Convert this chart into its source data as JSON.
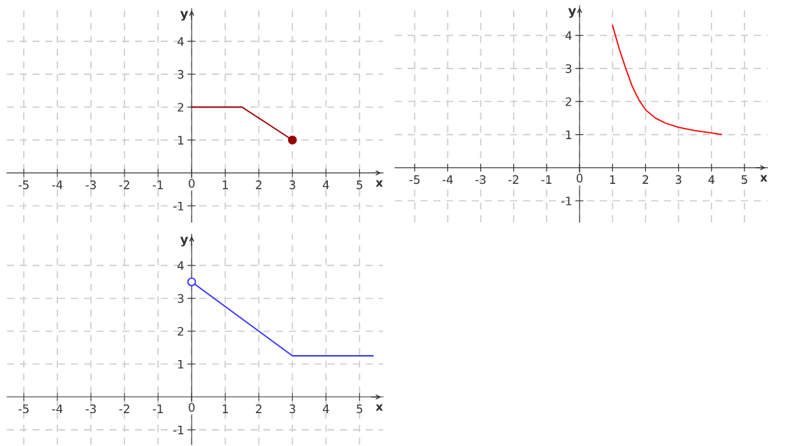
{
  "chart_data": [
    {
      "type": "line",
      "xlabel": "x",
      "ylabel": "y",
      "xlim": [
        -5.5,
        5.7
      ],
      "ylim": [
        -1.5,
        5.0
      ],
      "xticks": [
        -5,
        -4,
        -3,
        -2,
        -1,
        0,
        1,
        2,
        3,
        4,
        5
      ],
      "yticks": [
        -1,
        1,
        2,
        3,
        4
      ],
      "grid": true,
      "line_style": "solid",
      "series": [
        {
          "color": "#990000",
          "x": [
            0,
            1.5,
            3
          ],
          "values": [
            2,
            2,
            1
          ]
        },
        {
          "type": "scatter",
          "color": "#990000",
          "marker": "circle",
          "x": [
            3
          ],
          "values": [
            1
          ]
        }
      ]
    },
    {
      "type": "line",
      "xlabel": "x",
      "ylabel": "y",
      "xlim": [
        -5.6,
        5.7
      ],
      "ylim": [
        -1.65,
        4.9
      ],
      "xticks": [
        -5,
        -4,
        -3,
        -2,
        -1,
        0,
        1,
        2,
        3,
        4,
        5
      ],
      "yticks": [
        -1,
        1,
        2,
        3,
        4
      ],
      "grid": true,
      "line_style": "solid",
      "series": [
        {
          "color": "#ff0000",
          "x": [
            1,
            1.2,
            1.4,
            1.6,
            1.8,
            2,
            2.3,
            2.6,
            3,
            3.5,
            4,
            4.3
          ],
          "values": [
            4.3,
            3.6,
            3.0,
            2.45,
            2.05,
            1.75,
            1.5,
            1.35,
            1.22,
            1.12,
            1.05,
            1.0
          ]
        }
      ]
    },
    {
      "type": "line",
      "xlabel": "x",
      "ylabel": "y",
      "xlim": [
        -5.5,
        5.7
      ],
      "ylim": [
        -1.45,
        4.95
      ],
      "xticks": [
        -5,
        -4,
        -3,
        -2,
        -1,
        0,
        1,
        2,
        3,
        4,
        5
      ],
      "yticks": [
        -1,
        1,
        2,
        3,
        4
      ],
      "grid": true,
      "line_style": "solid",
      "series": [
        {
          "color": "#3333ff",
          "x": [
            0,
            3,
            5.4
          ],
          "values": [
            3.5,
            1.25,
            1.25
          ]
        },
        {
          "type": "scatter",
          "color": "#3333ff",
          "marker": "circle",
          "colors": [
            "#ffffff"
          ],
          "x": [
            0
          ],
          "values": [
            3.5
          ]
        }
      ]
    }
  ]
}
